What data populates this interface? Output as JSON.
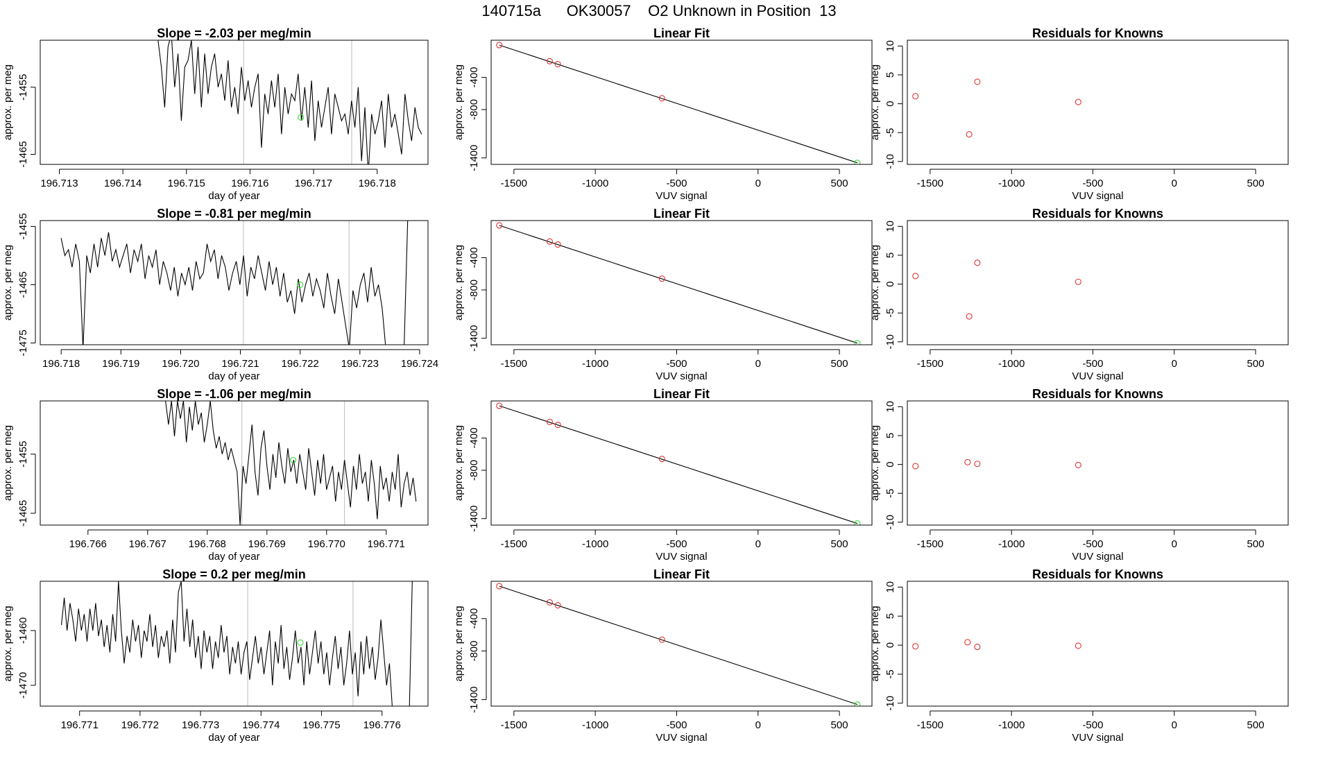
{
  "page_title": "140715a      OK30057    O2 Unknown in Position  13",
  "colors": {
    "line": "#000000",
    "known": "#dd3333",
    "unknown": "#33dd33",
    "vline": "#c8c8c8",
    "box": "#000000"
  },
  "chart_data": [
    {
      "type": "line",
      "title": "Slope =  -2.03  per meg/min",
      "xlabel": "day of year",
      "ylabel": "approx. per meg",
      "xlim": [
        196.7127,
        196.7188
      ],
      "ylim": [
        -1466.5,
        -1448
      ],
      "xticks": [
        196.713,
        196.714,
        196.715,
        196.716,
        196.717,
        196.718
      ],
      "xtick_labels": [
        "196.713",
        "196.714",
        "196.715",
        "196.716",
        "196.717",
        "196.718"
      ],
      "yticks": [
        -1455,
        -1465
      ],
      "ytick_labels": [
        "-1455",
        "-1465"
      ],
      "vlines": [
        196.7159,
        196.7176
      ],
      "unknown_point": [
        196.7168,
        -1459.5
      ],
      "series": {
        "x_start": 196.7145,
        "x_end": 196.7187,
        "values": [
          -1448,
          -1448,
          -1452,
          -1458,
          -1449,
          -1447,
          -1455,
          -1450,
          -1460,
          -1452,
          -1451,
          -1448,
          -1456,
          -1449,
          -1458,
          -1450,
          -1456,
          -1452,
          -1450,
          -1455,
          -1453,
          -1457,
          -1451,
          -1458,
          -1455,
          -1459,
          -1452,
          -1457,
          -1454,
          -1458,
          -1455,
          -1453,
          -1464,
          -1456,
          -1459,
          -1454,
          -1458,
          -1453,
          -1462,
          -1455,
          -1459,
          -1456,
          -1457,
          -1453,
          -1460,
          -1455,
          -1461,
          -1454,
          -1463,
          -1457,
          -1461,
          -1458,
          -1455,
          -1462,
          -1456,
          -1458,
          -1460,
          -1459,
          -1462,
          -1457,
          -1461,
          -1455,
          -1466,
          -1458,
          -1468,
          -1459,
          -1462,
          -1460,
          -1457,
          -1464,
          -1456,
          -1461,
          -1459,
          -1462,
          -1465,
          -1456,
          -1460,
          -1463,
          -1458,
          -1461,
          -1462
        ]
      }
    },
    {
      "type": "scatter",
      "title": "Linear Fit",
      "xlabel": "VUV signal",
      "ylabel": "approx. per meg",
      "xlim": [
        -1640,
        700
      ],
      "ylim": [
        -1480,
        60
      ],
      "xticks": [
        -1500,
        -1000,
        -500,
        0,
        500
      ],
      "xtick_labels": [
        "-1500",
        "-1000",
        "-500",
        "0",
        "500"
      ],
      "yticks": [
        -400,
        -800,
        -1400
      ],
      "ytick_labels": [
        "-400",
        "-800",
        "-1400"
      ],
      "fit_line": [
        [
          -1590,
          0
        ],
        [
          610,
          -1460
        ]
      ],
      "known_points": [
        [
          -1590,
          0
        ],
        [
          -1280,
          -200
        ],
        [
          -1230,
          -237
        ],
        [
          -590,
          -660
        ]
      ],
      "unknown_point": [
        610,
        -1460
      ]
    },
    {
      "type": "scatter",
      "title": "Residuals for Knowns",
      "xlabel": "VUV signal",
      "ylabel": "approx. per meg",
      "xlim": [
        -1640,
        700
      ],
      "ylim": [
        -10.5,
        11
      ],
      "xticks": [
        -1500,
        -1000,
        -500,
        0,
        500
      ],
      "xtick_labels": [
        "-1500",
        "-1000",
        "-500",
        "0",
        "500"
      ],
      "yticks": [
        10,
        5,
        0,
        -5,
        -10
      ],
      "ytick_labels": [
        "10",
        "5",
        "0",
        "-5",
        "-10"
      ],
      "known_points": [
        [
          -1590,
          1.3
        ],
        [
          -1260,
          -5.3
        ],
        [
          -1210,
          3.8
        ],
        [
          -590,
          0.3
        ]
      ]
    },
    {
      "type": "line",
      "title": "Slope =  -0.81  per meg/min",
      "xlabel": "day of year",
      "ylabel": "approx. per meg",
      "xlim": [
        196.71765,
        196.72414
      ],
      "ylim": [
        -1475.3,
        -1454
      ],
      "xticks": [
        196.718,
        196.719,
        196.72,
        196.721,
        196.722,
        196.723,
        196.724
      ],
      "xtick_labels": [
        "196.718",
        "196.719",
        "196.720",
        "196.721",
        "196.722",
        "196.723",
        "196.724"
      ],
      "yticks": [
        -1455,
        -1465,
        -1475
      ],
      "ytick_labels": [
        "-1455",
        "-1465",
        "-1475"
      ],
      "vlines": [
        196.72105,
        196.72282
      ],
      "unknown_point": [
        196.722,
        -1465
      ],
      "series": {
        "x_start": 196.718,
        "x_end": 196.7238,
        "values": [
          -1457,
          -1460,
          -1459,
          -1462,
          -1458,
          -1461,
          -1476,
          -1460,
          -1463,
          -1458,
          -1462,
          -1457,
          -1460,
          -1456,
          -1461,
          -1459,
          -1462,
          -1460,
          -1458,
          -1463,
          -1459,
          -1461,
          -1458,
          -1464,
          -1460,
          -1462,
          -1459,
          -1465,
          -1461,
          -1463,
          -1466,
          -1462,
          -1467,
          -1463,
          -1465,
          -1462,
          -1466,
          -1461,
          -1464,
          -1463,
          -1458,
          -1461,
          -1459,
          -1464,
          -1460,
          -1462,
          -1466,
          -1463,
          -1461,
          -1465,
          -1460,
          -1467,
          -1462,
          -1464,
          -1460,
          -1463,
          -1466,
          -1461,
          -1465,
          -1462,
          -1467,
          -1463,
          -1468,
          -1466,
          -1470,
          -1464,
          -1468,
          -1465,
          -1463,
          -1467,
          -1464,
          -1466,
          -1469,
          -1463,
          -1467,
          -1470,
          -1464,
          -1468,
          -1472,
          -1476,
          -1466,
          -1469,
          -1465,
          -1463,
          -1468,
          -1462,
          -1467,
          -1465,
          -1469,
          -1476,
          -1476,
          -1476,
          -1476,
          -1476,
          -1476,
          -1454
        ]
      }
    },
    {
      "type": "scatter",
      "title": "Linear Fit",
      "xlabel": "VUV signal",
      "ylabel": "approx. per meg",
      "xlim": [
        -1640,
        700
      ],
      "ylim": [
        -1480,
        60
      ],
      "xticks": [
        -1500,
        -1000,
        -500,
        0,
        500
      ],
      "xtick_labels": [
        "-1500",
        "-1000",
        "-500",
        "0",
        "500"
      ],
      "yticks": [
        -400,
        -800,
        -1400
      ],
      "ytick_labels": [
        "-400",
        "-800",
        "-1400"
      ],
      "fit_line": [
        [
          -1590,
          0
        ],
        [
          610,
          -1460
        ]
      ],
      "known_points": [
        [
          -1590,
          0
        ],
        [
          -1280,
          -200
        ],
        [
          -1230,
          -237
        ],
        [
          -590,
          -660
        ]
      ],
      "unknown_point": [
        610,
        -1460
      ]
    },
    {
      "type": "scatter",
      "title": "Residuals for Knowns",
      "xlabel": "VUV signal",
      "ylabel": "approx. per meg",
      "xlim": [
        -1640,
        700
      ],
      "ylim": [
        -10.5,
        11
      ],
      "xticks": [
        -1500,
        -1000,
        -500,
        0,
        500
      ],
      "xtick_labels": [
        "-1500",
        "-1000",
        "-500",
        "0",
        "500"
      ],
      "yticks": [
        10,
        5,
        0,
        -5,
        -10
      ],
      "ytick_labels": [
        "10",
        "5",
        "0",
        "-5",
        "-10"
      ],
      "known_points": [
        [
          -1590,
          1.4
        ],
        [
          -1260,
          -5.6
        ],
        [
          -1210,
          3.7
        ],
        [
          -590,
          0.4
        ]
      ]
    },
    {
      "type": "line",
      "title": "Slope =  -1.06  per meg/min",
      "xlabel": "day of year",
      "ylabel": "approx. per meg",
      "xlim": [
        196.7652,
        196.7717
      ],
      "ylim": [
        -1467,
        -1446
      ],
      "xticks": [
        196.766,
        196.767,
        196.768,
        196.769,
        196.77,
        196.771
      ],
      "xtick_labels": [
        "196.766",
        "196.767",
        "196.768",
        "196.769",
        "196.770",
        "196.771"
      ],
      "yticks": [
        -1455,
        -1465
      ],
      "ytick_labels": [
        "-1455",
        "-1465"
      ],
      "vlines": [
        196.76858,
        196.7703
      ],
      "unknown_point": [
        196.76944,
        -1456
      ],
      "series": {
        "x_start": 196.767,
        "x_end": 196.7715,
        "values": [
          -1446,
          -1446,
          -1446,
          -1446,
          -1446,
          -1446,
          -1446,
          -1450,
          -1446,
          -1452,
          -1446,
          -1449,
          -1446,
          -1453,
          -1447,
          -1451,
          -1446,
          -1450,
          -1448,
          -1453,
          -1450,
          -1446,
          -1451,
          -1454,
          -1452,
          -1455,
          -1453,
          -1456,
          -1454,
          -1456,
          -1458,
          -1467,
          -1457,
          -1460,
          -1455,
          -1450,
          -1458,
          -1462,
          -1454,
          -1451,
          -1457,
          -1461,
          -1455,
          -1459,
          -1453,
          -1457,
          -1460,
          -1454,
          -1458,
          -1456,
          -1460,
          -1455,
          -1458,
          -1461,
          -1454,
          -1458,
          -1462,
          -1456,
          -1460,
          -1455,
          -1461,
          -1459,
          -1457,
          -1463,
          -1458,
          -1461,
          -1456,
          -1460,
          -1464,
          -1457,
          -1461,
          -1455,
          -1460,
          -1458,
          -1463,
          -1456,
          -1460,
          -1466,
          -1457,
          -1461,
          -1459,
          -1463,
          -1458,
          -1461,
          -1455,
          -1464,
          -1460,
          -1458,
          -1462,
          -1459,
          -1463
        ]
      }
    },
    {
      "type": "scatter",
      "title": "Linear Fit",
      "xlabel": "VUV signal",
      "ylabel": "approx. per meg",
      "xlim": [
        -1640,
        700
      ],
      "ylim": [
        -1480,
        60
      ],
      "xticks": [
        -1500,
        -1000,
        -500,
        0,
        500
      ],
      "xtick_labels": [
        "-1500",
        "-1000",
        "-500",
        "0",
        "500"
      ],
      "yticks": [
        -400,
        -800,
        -1400
      ],
      "ytick_labels": [
        "-400",
        "-800",
        "-1400"
      ],
      "fit_line": [
        [
          -1590,
          0
        ],
        [
          610,
          -1460
        ]
      ],
      "known_points": [
        [
          -1590,
          0
        ],
        [
          -1280,
          -200
        ],
        [
          -1230,
          -237
        ],
        [
          -590,
          -660
        ]
      ],
      "unknown_point": [
        610,
        -1460
      ]
    },
    {
      "type": "scatter",
      "title": "Residuals for Knowns",
      "xlabel": "VUV signal",
      "ylabel": "approx. per meg",
      "xlim": [
        -1640,
        700
      ],
      "ylim": [
        -10.5,
        11
      ],
      "xticks": [
        -1500,
        -1000,
        -500,
        0,
        500
      ],
      "xtick_labels": [
        "-1500",
        "-1000",
        "-500",
        "0",
        "500"
      ],
      "yticks": [
        10,
        5,
        0,
        -5,
        -10
      ],
      "ytick_labels": [
        "10",
        "5",
        "0",
        "-5",
        "-10"
      ],
      "known_points": [
        [
          -1590,
          -0.3
        ],
        [
          -1270,
          0.4
        ],
        [
          -1210,
          0.1
        ],
        [
          -590,
          -0.1
        ]
      ]
    },
    {
      "type": "line",
      "title": "Slope =  0.2  per meg/min",
      "xlabel": "day of year",
      "ylabel": "approx. per meg",
      "xlim": [
        196.77035,
        196.77676
      ],
      "ylim": [
        -1473.8,
        -1451
      ],
      "xticks": [
        196.771,
        196.772,
        196.773,
        196.774,
        196.775,
        196.776
      ],
      "xtick_labels": [
        "196.771",
        "196.772",
        "196.773",
        "196.774",
        "196.775",
        "196.776"
      ],
      "yticks": [
        -1460,
        -1470
      ],
      "ytick_labels": [
        "-1460",
        "-1470"
      ],
      "vlines": [
        196.77378,
        196.77552
      ],
      "unknown_point": [
        196.77465,
        -1462.2
      ],
      "series": {
        "x_start": 196.7707,
        "x_end": 196.7765,
        "values": [
          -1459,
          -1454,
          -1460,
          -1455,
          -1458,
          -1462,
          -1456,
          -1460,
          -1457,
          -1462,
          -1456,
          -1460,
          -1455,
          -1461,
          -1458,
          -1463,
          -1459,
          -1464,
          -1457,
          -1462,
          -1451,
          -1460,
          -1466,
          -1461,
          -1464,
          -1458,
          -1462,
          -1459,
          -1465,
          -1460,
          -1462,
          -1457,
          -1463,
          -1459,
          -1465,
          -1461,
          -1463,
          -1460,
          -1466,
          -1458,
          -1464,
          -1453,
          -1451,
          -1462,
          -1456,
          -1463,
          -1458,
          -1465,
          -1461,
          -1467,
          -1460,
          -1464,
          -1461,
          -1467,
          -1462,
          -1465,
          -1459,
          -1464,
          -1461,
          -1468,
          -1463,
          -1466,
          -1462,
          -1468,
          -1464,
          -1462,
          -1469,
          -1465,
          -1461,
          -1466,
          -1463,
          -1468,
          -1464,
          -1460,
          -1470,
          -1462,
          -1466,
          -1459,
          -1467,
          -1463,
          -1469,
          -1465,
          -1460,
          -1466,
          -1463,
          -1470,
          -1462,
          -1468,
          -1464,
          -1460,
          -1466,
          -1462,
          -1468,
          -1464,
          -1470,
          -1465,
          -1461,
          -1467,
          -1463,
          -1470,
          -1466,
          -1460,
          -1468,
          -1464,
          -1472,
          -1462,
          -1468,
          -1461,
          -1467,
          -1463,
          -1469,
          -1465,
          -1458,
          -1464,
          -1470,
          -1466,
          -1474,
          -1474,
          -1474,
          -1474,
          -1474,
          -1474,
          -1474,
          -1451
        ]
      }
    },
    {
      "type": "scatter",
      "title": "Linear Fit",
      "xlabel": "VUV signal",
      "ylabel": "approx. per meg",
      "xlim": [
        -1640,
        700
      ],
      "ylim": [
        -1480,
        60
      ],
      "xticks": [
        -1500,
        -1000,
        -500,
        0,
        500
      ],
      "xtick_labels": [
        "-1500",
        "-1000",
        "-500",
        "0",
        "500"
      ],
      "yticks": [
        -400,
        -800,
        -1400
      ],
      "ytick_labels": [
        "-400",
        "-800",
        "-1400"
      ],
      "fit_line": [
        [
          -1590,
          0
        ],
        [
          610,
          -1460
        ]
      ],
      "known_points": [
        [
          -1590,
          0
        ],
        [
          -1280,
          -200
        ],
        [
          -1230,
          -237
        ],
        [
          -590,
          -660
        ]
      ],
      "unknown_point": [
        610,
        -1460
      ]
    },
    {
      "type": "scatter",
      "title": "Residuals for Knowns",
      "xlabel": "VUV signal",
      "ylabel": "approx. per meg",
      "xlim": [
        -1640,
        700
      ],
      "ylim": [
        -10.5,
        11
      ],
      "xticks": [
        -1500,
        -1000,
        -500,
        0,
        500
      ],
      "xtick_labels": [
        "-1500",
        "-1000",
        "-500",
        "0",
        "500"
      ],
      "yticks": [
        10,
        5,
        0,
        -5,
        -10
      ],
      "ytick_labels": [
        "10",
        "5",
        "0",
        "-5",
        "-10"
      ],
      "known_points": [
        [
          -1590,
          -0.2
        ],
        [
          -1270,
          0.5
        ],
        [
          -1210,
          -0.3
        ],
        [
          -590,
          -0.1
        ]
      ]
    }
  ]
}
